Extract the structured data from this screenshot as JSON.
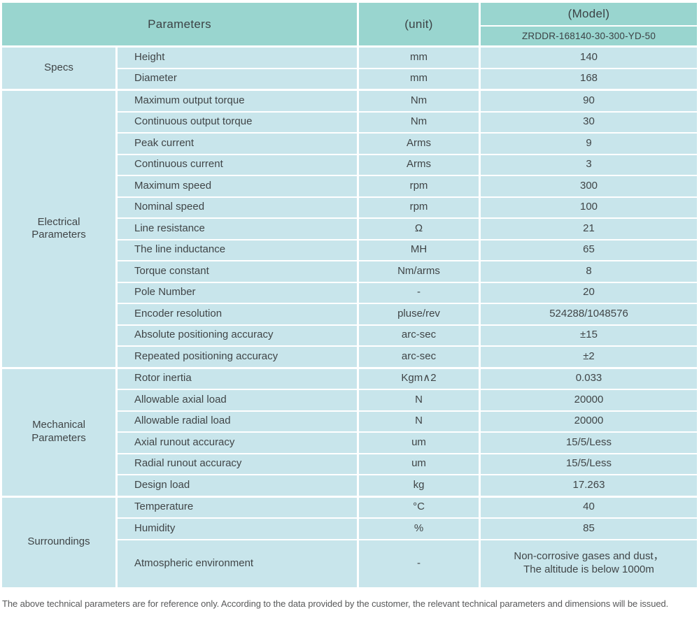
{
  "header": {
    "parameters_label": "Parameters",
    "unit_label": "(unit)",
    "model_label": "(Model)",
    "model_value": "ZRDDR-168140-30-300-YD-50"
  },
  "sections": [
    {
      "label": "Specs",
      "rows": [
        {
          "param": "Height",
          "unit": "mm",
          "value": "140"
        },
        {
          "param": "Diameter",
          "unit": "mm",
          "value": "168"
        }
      ]
    },
    {
      "label": "Electrical\nParameters",
      "rows": [
        {
          "param": "Maximum output torque",
          "unit": "Nm",
          "value": "90"
        },
        {
          "param": "Continuous output torque",
          "unit": "Nm",
          "value": "30"
        },
        {
          "param": "Peak current",
          "unit": "Arms",
          "value": "9"
        },
        {
          "param": "Continuous current",
          "unit": "Arms",
          "value": "3"
        },
        {
          "param": "Maximum speed",
          "unit": "rpm",
          "value": "300"
        },
        {
          "param": "Nominal speed",
          "unit": "rpm",
          "value": "100"
        },
        {
          "param": "Line resistance",
          "unit": "Ω",
          "value": "21"
        },
        {
          "param": "The line inductance",
          "unit": "MH",
          "value": "65"
        },
        {
          "param": "Torque constant",
          "unit": "Nm/arms",
          "value": "8"
        },
        {
          "param": "Pole Number",
          "unit": "-",
          "value": "20"
        },
        {
          "param": "Encoder resolution",
          "unit": "pluse/rev",
          "value": "524288/1048576"
        },
        {
          "param": "Absolute positioning accuracy",
          "unit": "arc-sec",
          "value": "±15"
        },
        {
          "param": "Repeated positioning accuracy",
          "unit": "arc-sec",
          "value": "±2"
        }
      ]
    },
    {
      "label": "Mechanical\nParameters",
      "rows": [
        {
          "param": "Rotor inertia",
          "unit": "Kgm∧2",
          "value": "0.033"
        },
        {
          "param": "Allowable axial load",
          "unit": "N",
          "value": "20000"
        },
        {
          "param": "Allowable radial load",
          "unit": "N",
          "value": "20000"
        },
        {
          "param": "Axial runout accuracy",
          "unit": "um",
          "value": "15/5/Less"
        },
        {
          "param": "Radial runout accuracy",
          "unit": "um",
          "value": "15/5/Less"
        },
        {
          "param": "Design load",
          "unit": "kg",
          "value": "17.263"
        }
      ]
    },
    {
      "label": "Surroundings",
      "rows": [
        {
          "param": "Temperature",
          "unit": "°C",
          "value": "40"
        },
        {
          "param": "Humidity",
          "unit": "%",
          "value": "85"
        },
        {
          "param": "Atmospheric environment",
          "unit": "-",
          "value": "Non-corrosive gases and dust，\nThe altitude is below 1000m",
          "tall": true
        }
      ]
    }
  ],
  "footer": {
    "note": "The above technical parameters are for reference only. According to the data provided by the customer, the relevant technical parameters and dimensions will be issued."
  },
  "colors": {
    "header_bg": "#99d5cf",
    "cell_bg": "#c8e5eb",
    "text": "#404547",
    "footer_text": "#58595a",
    "divider": "#ffffff"
  }
}
